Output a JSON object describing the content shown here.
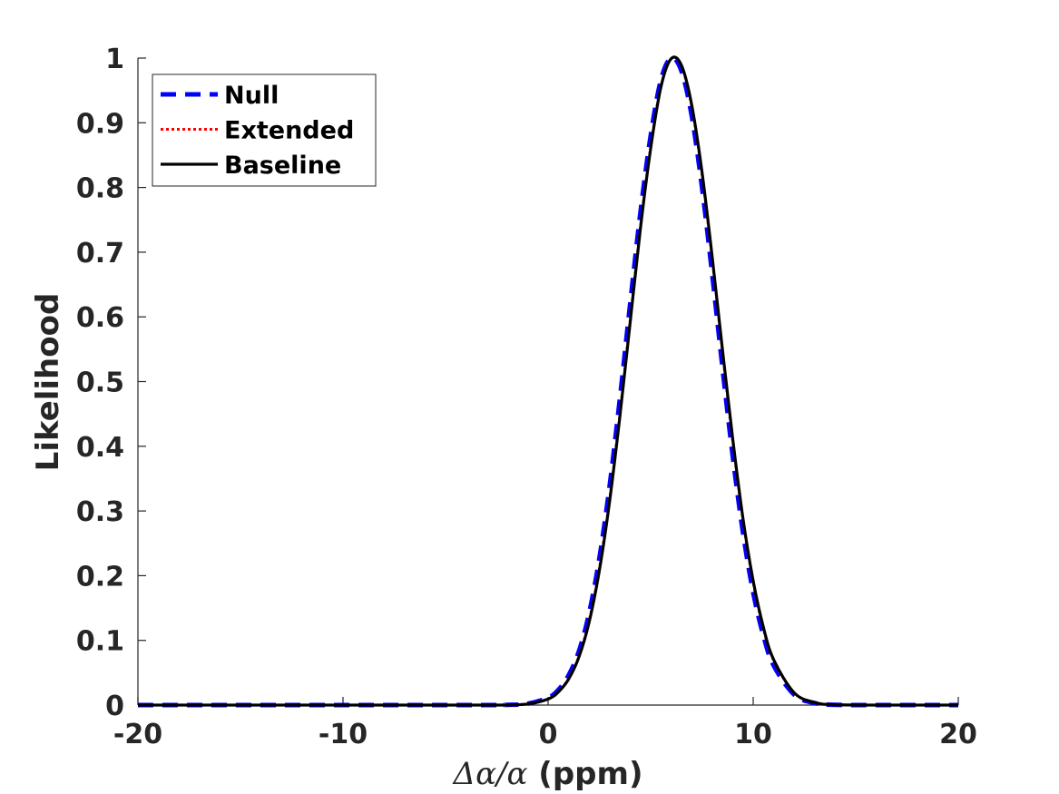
{
  "chart_data": {
    "type": "line",
    "xlabel": "Δα/α (ppm)",
    "xlabel_parts": {
      "symbol": "Δα/α",
      "unit": "(ppm)"
    },
    "ylabel": "Likelihood",
    "xlim": [
      -20,
      20
    ],
    "ylim": [
      0,
      1
    ],
    "xticks": [
      -20,
      -10,
      0,
      10,
      20
    ],
    "xtick_labels": [
      "-20",
      "-10",
      "0",
      "10",
      "20"
    ],
    "yticks": [
      0,
      0.1,
      0.2,
      0.3,
      0.4,
      0.5,
      0.6,
      0.7,
      0.8,
      0.9,
      1
    ],
    "ytick_labels": [
      "0",
      "0.1",
      "0.2",
      "0.3",
      "0.4",
      "0.5",
      "0.6",
      "0.7",
      "0.8",
      "0.9",
      "1"
    ],
    "grid": false,
    "legend_position": "top-left",
    "x": [
      -20,
      -4,
      -2,
      -1,
      0,
      0.5,
      1,
      1.5,
      2,
      2.5,
      3,
      3.5,
      4,
      4.5,
      5,
      5.5,
      6,
      6.5,
      7,
      7.5,
      8,
      8.5,
      9,
      9.5,
      10,
      10.5,
      11,
      12,
      13,
      14,
      16,
      20
    ],
    "series": [
      {
        "name": "Null",
        "color": "#0000ff",
        "style": "dashed",
        "values": [
          0,
          0,
          0.0003,
          0.0022,
          0.0112,
          0.0235,
          0.046,
          0.083,
          0.142,
          0.227,
          0.339,
          0.474,
          0.62,
          0.761,
          0.88,
          0.966,
          1.0,
          0.98,
          0.911,
          0.801,
          0.666,
          0.522,
          0.385,
          0.267,
          0.174,
          0.107,
          0.061,
          0.016,
          0.003,
          0.0004,
          0,
          0
        ]
      },
      {
        "name": "Extended",
        "color": "#ff0000",
        "style": "dotted",
        "values": [
          0,
          0,
          0.0002,
          0.0018,
          0.0095,
          0.0205,
          0.041,
          0.075,
          0.13,
          0.211,
          0.318,
          0.449,
          0.594,
          0.738,
          0.862,
          0.956,
          0.999,
          0.988,
          0.926,
          0.822,
          0.69,
          0.547,
          0.409,
          0.287,
          0.19,
          0.118,
          0.069,
          0.019,
          0.004,
          0.0005,
          0,
          0
        ]
      },
      {
        "name": "Baseline",
        "color": "#000000",
        "style": "solid",
        "values": [
          0,
          0,
          0.0002,
          0.0017,
          0.0093,
          0.0202,
          0.04,
          0.074,
          0.128,
          0.208,
          0.315,
          0.446,
          0.591,
          0.736,
          0.86,
          0.955,
          0.999,
          0.989,
          0.928,
          0.825,
          0.693,
          0.55,
          0.412,
          0.289,
          0.192,
          0.12,
          0.07,
          0.019,
          0.004,
          0.0005,
          0,
          0
        ]
      }
    ]
  }
}
